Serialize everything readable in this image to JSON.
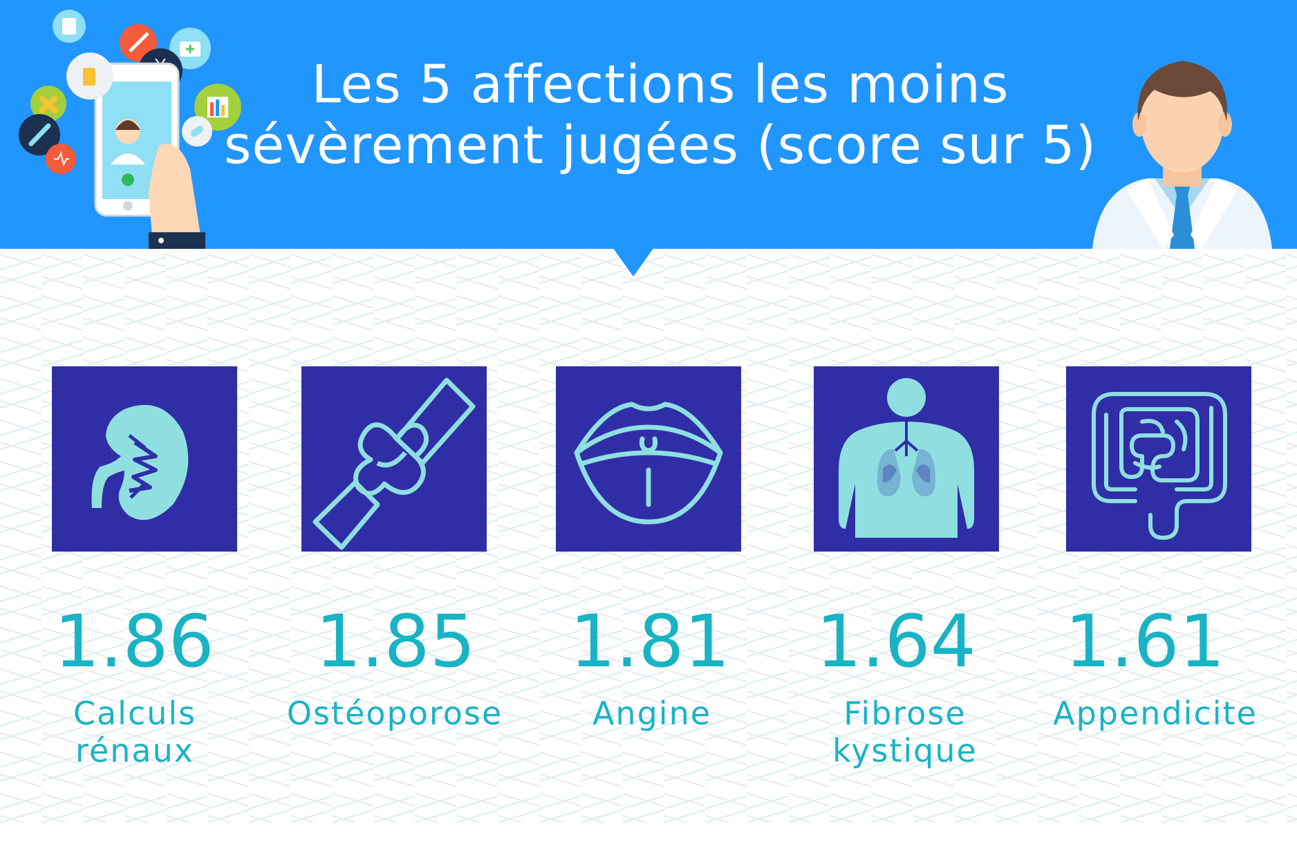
{
  "title": {
    "line1": "Les 5 affections les moins",
    "line2": "sévèrement jugées (score sur 5)"
  },
  "colors": {
    "header": "#2196ff",
    "tile": "#302ea6",
    "icon": "#8fdfe0",
    "text": "#1ab3c4"
  },
  "items": [
    {
      "icon": "kidney-icon",
      "score": "1.86",
      "label_line1": "Calculs",
      "label_line2": "rénaux"
    },
    {
      "icon": "bone-joint-icon",
      "score": "1.85",
      "label_line1": "Ostéoporose",
      "label_line2": ""
    },
    {
      "icon": "throat-mouth-icon",
      "score": "1.81",
      "label_line1": "Angine",
      "label_line2": ""
    },
    {
      "icon": "lungs-torso-icon",
      "score": "1.64",
      "label_line1": "Fibrose",
      "label_line2": "kystique"
    },
    {
      "icon": "intestines-icon",
      "score": "1.61",
      "label_line1": "Appendicite",
      "label_line2": ""
    }
  ]
}
